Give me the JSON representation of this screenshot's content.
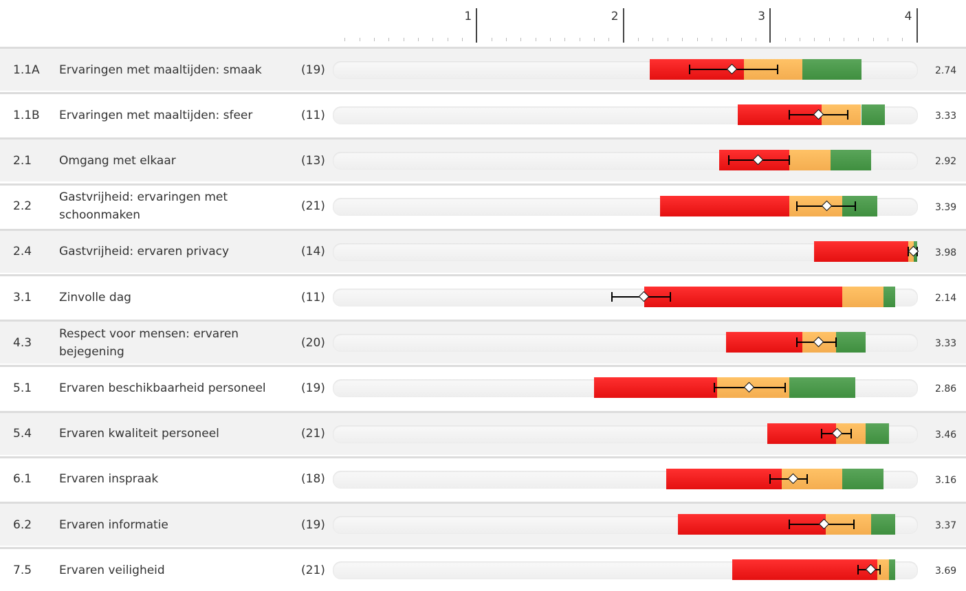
{
  "chart_data": {
    "type": "bar",
    "xlim": [
      0,
      4
    ],
    "ticks": [
      "1",
      "2",
      "3",
      "4"
    ],
    "rows": [
      {
        "code": "1.1A",
        "label": "Ervaringen met maaltijden: smaak",
        "n": "(19)",
        "mean": 2.74,
        "mean_label": "2.74",
        "ci": [
          2.45,
          3.05
        ],
        "red": [
          2.18,
          2.82
        ],
        "orange": [
          2.82,
          3.22
        ],
        "green": [
          3.22,
          3.62
        ]
      },
      {
        "code": "1.1B",
        "label": "Ervaringen met maaltijden: sfeer",
        "n": "(11)",
        "mean": 3.33,
        "mean_label": "3.33",
        "ci": [
          3.13,
          3.53
        ],
        "red": [
          2.78,
          3.35
        ],
        "orange": [
          3.35,
          3.62
        ],
        "green": [
          3.62,
          3.78
        ]
      },
      {
        "code": "2.1",
        "label": "Omgang met elkaar",
        "n": "(13)",
        "mean": 2.92,
        "mean_label": "2.92",
        "ci": [
          2.72,
          3.13
        ],
        "red": [
          2.65,
          3.13
        ],
        "orange": [
          3.13,
          3.41
        ],
        "green": [
          3.41,
          3.69
        ]
      },
      {
        "code": "2.2",
        "label": "Gastvrijheid: ervaringen met schoonmaken",
        "n": "(21)",
        "mean": 3.39,
        "mean_label": "3.39",
        "ci": [
          3.18,
          3.58
        ],
        "red": [
          2.25,
          3.13
        ],
        "orange": [
          3.13,
          3.49
        ],
        "green": [
          3.49,
          3.73
        ]
      },
      {
        "code": "2.4",
        "label": "Gastvrijheid: ervaren privacy",
        "n": "(14)",
        "mean": 3.98,
        "mean_label": "3.98",
        "ci": [
          3.94,
          4.0
        ],
        "red": [
          3.3,
          3.94
        ],
        "orange": [
          3.94,
          3.98
        ],
        "green": [
          3.98,
          4.0
        ]
      },
      {
        "code": "3.1",
        "label": "Zinvolle dag",
        "n": "(11)",
        "mean": 2.14,
        "mean_label": "2.14",
        "ci": [
          1.92,
          2.32
        ],
        "red": [
          2.14,
          3.49
        ],
        "orange": [
          3.49,
          3.77
        ],
        "green": [
          3.77,
          3.85
        ]
      },
      {
        "code": "4.3",
        "label": "Respect voor mensen: ervaren bejegening",
        "n": "(20)",
        "mean": 3.33,
        "mean_label": "3.33",
        "ci": [
          3.18,
          3.45
        ],
        "red": [
          2.7,
          3.22
        ],
        "orange": [
          3.22,
          3.45
        ],
        "green": [
          3.45,
          3.65
        ]
      },
      {
        "code": "5.1",
        "label": "Ervaren beschikbaarheid personeel",
        "n": "(19)",
        "mean": 2.86,
        "mean_label": "2.86",
        "ci": [
          2.62,
          3.1
        ],
        "red": [
          1.8,
          2.64
        ],
        "orange": [
          2.64,
          3.13
        ],
        "green": [
          3.13,
          3.58
        ]
      },
      {
        "code": "5.4",
        "label": "Ervaren kwaliteit personeel",
        "n": "(21)",
        "mean": 3.46,
        "mean_label": "3.46",
        "ci": [
          3.35,
          3.55
        ],
        "red": [
          2.98,
          3.45
        ],
        "orange": [
          3.45,
          3.65
        ],
        "green": [
          3.65,
          3.81
        ]
      },
      {
        "code": "6.1",
        "label": "Ervaren inspraak",
        "n": "(18)",
        "mean": 3.16,
        "mean_label": "3.16",
        "ci": [
          3.0,
          3.25
        ],
        "red": [
          2.29,
          3.08
        ],
        "orange": [
          3.08,
          3.49
        ],
        "green": [
          3.49,
          3.77
        ]
      },
      {
        "code": "6.2",
        "label": "Ervaren informatie",
        "n": "(19)",
        "mean": 3.37,
        "mean_label": "3.37",
        "ci": [
          3.13,
          3.57
        ],
        "red": [
          2.37,
          3.38
        ],
        "orange": [
          3.38,
          3.69
        ],
        "green": [
          3.69,
          3.85
        ]
      },
      {
        "code": "7.5",
        "label": "Ervaren veiligheid",
        "n": "(21)",
        "mean": 3.69,
        "mean_label": "3.69",
        "ci": [
          3.6,
          3.75
        ],
        "red": [
          2.74,
          3.73
        ],
        "orange": [
          3.73,
          3.81
        ],
        "green": [
          3.81,
          3.85
        ]
      }
    ]
  }
}
